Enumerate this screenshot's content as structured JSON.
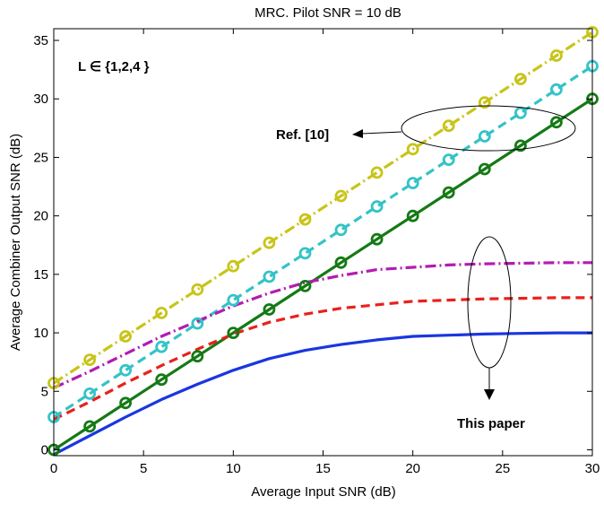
{
  "chart_data": {
    "type": "line",
    "title": "MRC. Pilot SNR = 10 dB",
    "xlabel": "Average Input SNR (dB)",
    "ylabel": "Average Combiner Output SNR (dB)",
    "xlim": [
      0,
      30
    ],
    "ylim": [
      -0.5,
      36
    ],
    "xticks": [
      0,
      5,
      10,
      15,
      20,
      25,
      30
    ],
    "yticks": [
      0,
      5,
      10,
      15,
      20,
      25,
      30,
      35
    ],
    "grid": false,
    "x": [
      0,
      2,
      4,
      6,
      8,
      10,
      12,
      14,
      16,
      18,
      20,
      22,
      24,
      26,
      28,
      30
    ],
    "series": [
      {
        "color": "#c8c419",
        "dash": "12 4 2 4",
        "markers": true,
        "values": [
          5.7,
          7.7,
          9.7,
          11.7,
          13.7,
          15.7,
          17.7,
          19.7,
          21.7,
          23.7,
          25.7,
          27.7,
          29.7,
          31.7,
          33.7,
          35.7
        ]
      },
      {
        "color": "#33c3c7",
        "dash": "10 6",
        "markers": true,
        "values": [
          2.8,
          4.8,
          6.8,
          8.8,
          10.8,
          12.8,
          14.8,
          16.8,
          18.8,
          20.8,
          22.8,
          24.8,
          26.8,
          28.8,
          30.8,
          32.8
        ]
      },
      {
        "color": "#147a14",
        "dash": "",
        "markers": true,
        "values": [
          0,
          2,
          4,
          6,
          8,
          10,
          12,
          14,
          16,
          18,
          20,
          22,
          24,
          26,
          28,
          30
        ]
      },
      {
        "color": "#b31bb3",
        "dash": "12 4 2 4",
        "markers": false,
        "values": [
          5.3,
          6.7,
          8.2,
          9.7,
          11.0,
          12.3,
          13.4,
          14.3,
          14.9,
          15.4,
          15.6,
          15.8,
          15.9,
          15.95,
          16.0,
          16.0
        ]
      },
      {
        "color": "#e8211c",
        "dash": "10 6",
        "markers": false,
        "values": [
          2.6,
          4.1,
          5.7,
          7.2,
          8.6,
          9.9,
          10.9,
          11.6,
          12.1,
          12.4,
          12.7,
          12.8,
          12.9,
          12.95,
          13.0,
          13.0
        ]
      },
      {
        "color": "#1a36e0",
        "dash": "",
        "markers": false,
        "values": [
          -0.4,
          1.2,
          2.8,
          4.3,
          5.6,
          6.8,
          7.8,
          8.5,
          9.0,
          9.4,
          9.7,
          9.8,
          9.9,
          9.95,
          10.0,
          10.0
        ]
      }
    ],
    "annotations": {
      "L_set": "L ∈ {1,2,4 }",
      "ref": "Ref. [10]",
      "this_paper": "This paper"
    }
  }
}
